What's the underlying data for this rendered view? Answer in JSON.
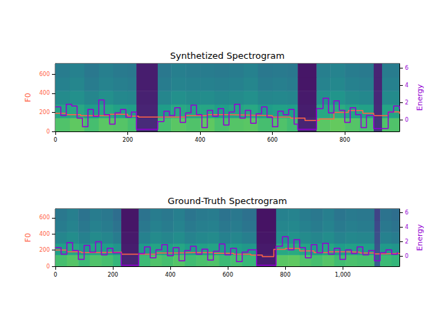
{
  "chart_data": [
    {
      "type": "spectrogram",
      "title": "Synthetized Spectrogram",
      "ylabel": "F0",
      "y2label": "Energy",
      "xlim": [
        0,
        951
      ],
      "xticks": [
        0,
        200,
        400,
        600,
        800
      ],
      "ylim": [
        0,
        710
      ],
      "yticks": [
        0,
        200,
        400,
        600
      ],
      "y2lim": [
        -1.35,
        6.5
      ],
      "y2ticks": [
        0,
        2,
        4,
        6
      ],
      "spectrogram": {
        "color_range": [
          0,
          1
        ],
        "time_edges": [
          0,
          40,
          80,
          120,
          160,
          200,
          224,
          283,
          320,
          360,
          400,
          440,
          480,
          520,
          560,
          600,
          640,
          670,
          722,
          760,
          800,
          840,
          880,
          903,
          951
        ],
        "bands": [
          [
            0.72,
            0.75,
            0.7,
            0.74,
            0.73,
            0.7,
            0.12,
            0.7,
            0.74,
            0.72,
            0.75,
            0.71,
            0.73,
            0.74,
            0.7,
            0.72,
            0.69,
            0.1,
            0.74,
            0.76,
            0.73,
            0.71,
            0.15,
            0.72
          ],
          [
            0.58,
            0.6,
            0.55,
            0.6,
            0.57,
            0.56,
            0.1,
            0.55,
            0.6,
            0.58,
            0.59,
            0.56,
            0.58,
            0.6,
            0.55,
            0.57,
            0.56,
            0.08,
            0.6,
            0.62,
            0.58,
            0.57,
            0.12,
            0.58
          ],
          [
            0.48,
            0.5,
            0.46,
            0.5,
            0.47,
            0.46,
            0.09,
            0.46,
            0.5,
            0.48,
            0.49,
            0.47,
            0.48,
            0.5,
            0.46,
            0.47,
            0.46,
            0.07,
            0.5,
            0.52,
            0.48,
            0.47,
            0.11,
            0.48
          ],
          [
            0.44,
            0.46,
            0.42,
            0.45,
            0.43,
            0.42,
            0.08,
            0.42,
            0.45,
            0.44,
            0.44,
            0.43,
            0.44,
            0.46,
            0.42,
            0.43,
            0.42,
            0.06,
            0.45,
            0.47,
            0.44,
            0.43,
            0.1,
            0.44
          ],
          [
            0.42,
            0.44,
            0.4,
            0.43,
            0.41,
            0.4,
            0.08,
            0.4,
            0.43,
            0.42,
            0.42,
            0.41,
            0.42,
            0.44,
            0.4,
            0.41,
            0.4,
            0.06,
            0.43,
            0.45,
            0.42,
            0.41,
            0.1,
            0.42
          ]
        ]
      },
      "series": [
        {
          "type": "line",
          "axis": "y",
          "color": "#ff6347",
          "line_style": "step",
          "x": [
            0,
            30,
            70,
            150,
            200,
            230,
            300,
            360,
            420,
            480,
            540,
            600,
            650,
            690,
            730,
            770,
            810,
            850,
            880,
            920,
            951
          ],
          "values": [
            190,
            175,
            165,
            180,
            160,
            150,
            150,
            165,
            175,
            170,
            165,
            150,
            140,
            115,
            130,
            200,
            220,
            190,
            165,
            205,
            185
          ]
        },
        {
          "type": "line",
          "axis": "y2",
          "color": "#9400d3",
          "line_style": "step",
          "x": [
            0,
            15,
            30,
            45,
            60,
            75,
            90,
            105,
            120,
            135,
            150,
            165,
            180,
            195,
            210,
            224,
            283,
            300,
            315,
            330,
            345,
            360,
            375,
            390,
            405,
            420,
            435,
            450,
            465,
            480,
            495,
            510,
            525,
            540,
            555,
            570,
            585,
            600,
            615,
            630,
            645,
            660,
            670,
            722,
            740,
            755,
            770,
            785,
            800,
            815,
            830,
            845,
            860,
            880,
            903,
            920,
            935,
            951
          ],
          "values": [
            1.5,
            0.5,
            1.8,
            1.6,
            0.2,
            -0.8,
            1.2,
            0.4,
            2.3,
            0.6,
            -0.5,
            0.8,
            1.2,
            0.3,
            0.9,
            -1.1,
            -0.2,
            1.0,
            0.5,
            1.4,
            -0.3,
            0.8,
            1.7,
            0.6,
            -0.9,
            1.1,
            0.4,
            1.3,
            -0.6,
            0.9,
            1.8,
            0.2,
            1.1,
            -0.4,
            0.7,
            1.5,
            0.3,
            -0.8,
            1.0,
            0.6,
            1.2,
            -0.5,
            -1.1,
            1.3,
            2.5,
            0.8,
            2.2,
            1.1,
            -0.3,
            1.4,
            0.6,
            -0.9,
            0.5,
            -1.0,
            -1.0,
            0.9,
            1.6,
            1.2
          ]
        }
      ]
    },
    {
      "type": "spectrogram",
      "title": "Ground-Truth Spectrogram",
      "ylabel": "F0",
      "y2label": "Energy",
      "xlim": [
        0,
        1197
      ],
      "xticks": [
        0,
        200,
        400,
        600,
        800,
        1000
      ],
      "ylim": [
        0,
        710
      ],
      "yticks": [
        0,
        200,
        400,
        600
      ],
      "y2lim": [
        -1.35,
        6.5
      ],
      "y2ticks": [
        0,
        2,
        4,
        6
      ],
      "spectrogram": {
        "color_range": [
          0,
          1
        ],
        "time_edges": [
          0,
          40,
          80,
          120,
          160,
          200,
          229,
          290,
          330,
          370,
          410,
          450,
          490,
          530,
          570,
          610,
          650,
          700,
          768,
          810,
          850,
          890,
          930,
          970,
          1010,
          1050,
          1110,
          1130,
          1170,
          1197
        ],
        "bands": [
          [
            0.7,
            0.73,
            0.68,
            0.72,
            0.7,
            0.66,
            0.1,
            0.68,
            0.72,
            0.7,
            0.73,
            0.69,
            0.71,
            0.72,
            0.68,
            0.7,
            0.67,
            0.08,
            0.74,
            0.75,
            0.72,
            0.7,
            0.73,
            0.69,
            0.71,
            0.7,
            0.3,
            0.68,
            0.66
          ],
          [
            0.56,
            0.59,
            0.54,
            0.58,
            0.56,
            0.52,
            0.08,
            0.54,
            0.58,
            0.56,
            0.59,
            0.55,
            0.57,
            0.58,
            0.54,
            0.56,
            0.53,
            0.07,
            0.6,
            0.61,
            0.58,
            0.56,
            0.59,
            0.55,
            0.57,
            0.56,
            0.26,
            0.54,
            0.52
          ],
          [
            0.46,
            0.49,
            0.44,
            0.48,
            0.46,
            0.42,
            0.07,
            0.44,
            0.48,
            0.46,
            0.49,
            0.45,
            0.47,
            0.48,
            0.44,
            0.46,
            0.43,
            0.06,
            0.5,
            0.51,
            0.48,
            0.46,
            0.49,
            0.45,
            0.47,
            0.46,
            0.24,
            0.44,
            0.42
          ],
          [
            0.42,
            0.45,
            0.4,
            0.44,
            0.42,
            0.38,
            0.06,
            0.4,
            0.44,
            0.42,
            0.45,
            0.41,
            0.43,
            0.44,
            0.4,
            0.42,
            0.39,
            0.05,
            0.46,
            0.47,
            0.44,
            0.42,
            0.45,
            0.41,
            0.43,
            0.42,
            0.22,
            0.4,
            0.38
          ],
          [
            0.4,
            0.43,
            0.38,
            0.42,
            0.4,
            0.36,
            0.06,
            0.38,
            0.42,
            0.4,
            0.43,
            0.39,
            0.41,
            0.42,
            0.38,
            0.4,
            0.37,
            0.05,
            0.44,
            0.45,
            0.42,
            0.4,
            0.43,
            0.39,
            0.41,
            0.4,
            0.2,
            0.38,
            0.36
          ]
        ]
      },
      "series": [
        {
          "type": "line",
          "axis": "y",
          "color": "#ff6347",
          "line_style": "step",
          "x": [
            0,
            40,
            90,
            150,
            230,
            290,
            350,
            420,
            480,
            550,
            620,
            680,
            720,
            760,
            800,
            850,
            900,
            950,
            1000,
            1060,
            1110,
            1150,
            1197
          ],
          "values": [
            200,
            180,
            170,
            175,
            150,
            150,
            165,
            170,
            170,
            160,
            150,
            140,
            120,
            210,
            220,
            190,
            170,
            180,
            175,
            165,
            155,
            160,
            150
          ]
        },
        {
          "type": "line",
          "axis": "y2",
          "color": "#9400d3",
          "line_style": "step",
          "x": [
            0,
            20,
            40,
            60,
            80,
            100,
            120,
            140,
            160,
            180,
            200,
            229,
            290,
            310,
            330,
            350,
            370,
            390,
            410,
            430,
            450,
            470,
            490,
            510,
            530,
            550,
            570,
            590,
            610,
            630,
            650,
            670,
            700,
            768,
            790,
            810,
            830,
            850,
            870,
            890,
            910,
            930,
            950,
            970,
            990,
            1010,
            1030,
            1050,
            1070,
            1090,
            1110,
            1130,
            1150,
            1170,
            1190
          ],
          "values": [
            1.2,
            0.3,
            1.9,
            0.8,
            -0.4,
            1.5,
            0.6,
            2.0,
            0.2,
            1.1,
            0.5,
            -1.2,
            0.4,
            1.3,
            -0.2,
            0.9,
            1.6,
            0.1,
            1.2,
            -0.6,
            0.8,
            1.4,
            0.3,
            1.0,
            -0.5,
            0.7,
            1.7,
            0.2,
            1.1,
            -0.7,
            0.6,
            0.9,
            -1.2,
            1.4,
            2.7,
            0.9,
            2.3,
            1.2,
            -0.2,
            1.6,
            0.5,
            1.8,
            0.3,
            1.1,
            -0.4,
            0.9,
            0.4,
            1.3,
            0.2,
            0.8,
            -0.6,
            0.5,
            0.9,
            0.3,
            0.6
          ]
        }
      ]
    }
  ]
}
